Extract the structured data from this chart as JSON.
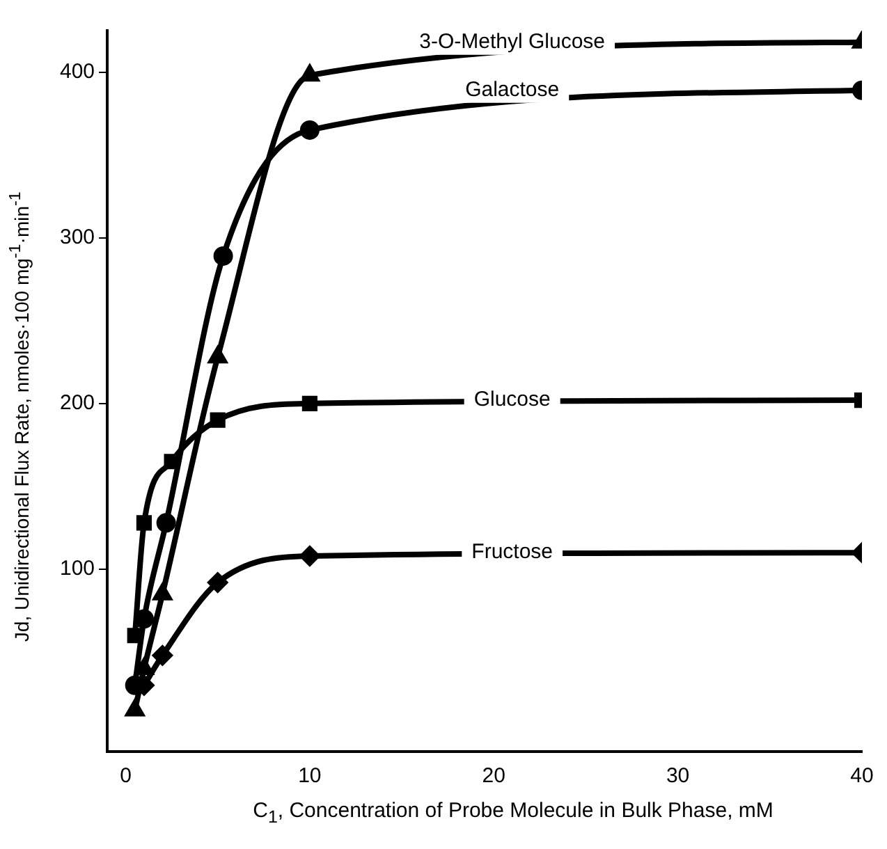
{
  "chart_data": {
    "type": "line",
    "xlabel": "C$_{1}$, Concentration of Probe Molecule in Bulk Phase, mM",
    "ylabel": "Jd, Unidirectional Flux Rate, nmoles·100 mg$^{-1}$·min$^{-1}$",
    "xlim": [
      -1,
      40
    ],
    "xticks": [
      0,
      10,
      20,
      30,
      40
    ],
    "ylim": [
      -10,
      425
    ],
    "yticks": [
      100,
      200,
      300,
      400
    ],
    "grid": false,
    "legend": false,
    "line_style": "solid",
    "series": [
      {
        "name": "3-O-Methyl Glucose",
        "color": "#000000",
        "marker": "triangle",
        "x": [
          0.5,
          1,
          2,
          5,
          10,
          40
        ],
        "values": [
          15,
          40,
          85,
          228,
          398,
          418
        ]
      },
      {
        "name": "Galactose",
        "color": "#000000",
        "marker": "circle",
        "x": [
          0.5,
          1,
          2.2,
          5.3,
          10,
          40
        ],
        "values": [
          30,
          70,
          128,
          289,
          365,
          389
        ]
      },
      {
        "name": "Glucose",
        "color": "#000000",
        "marker": "square",
        "x": [
          0.5,
          1,
          2.5,
          5,
          10,
          40
        ],
        "values": [
          60,
          128,
          165,
          190,
          200,
          202
        ]
      },
      {
        "name": "Fructose",
        "color": "#000000",
        "marker": "diamond",
        "x": [
          1,
          2,
          5,
          10,
          40
        ],
        "values": [
          30,
          48,
          92,
          108,
          110
        ]
      }
    ]
  }
}
